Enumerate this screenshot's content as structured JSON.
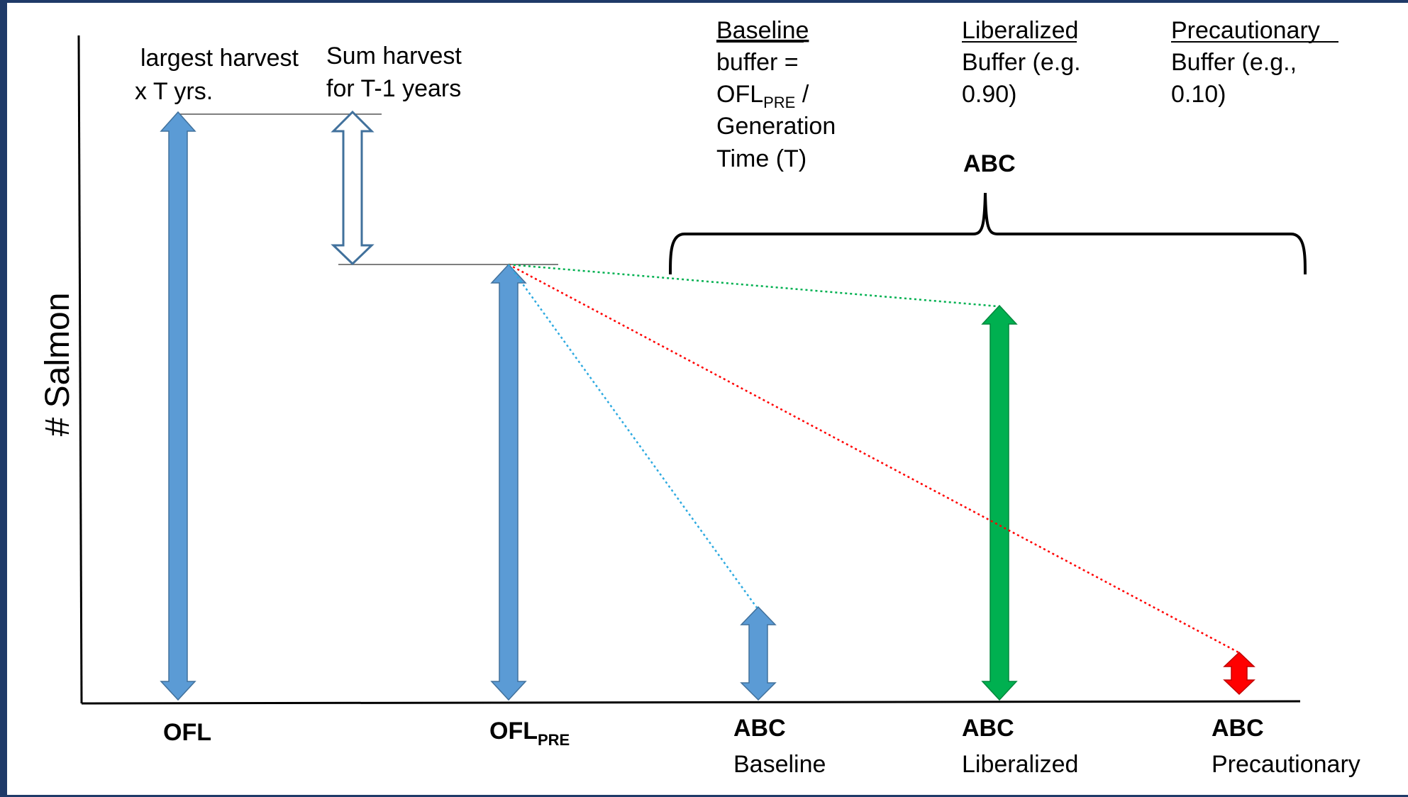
{
  "y_axis_label": "# Salmon",
  "top_notes": {
    "largest_harvest": [
      "largest harvest",
      "x T yrs."
    ],
    "sum_harvest": [
      "Sum harvest",
      "for T-1 years"
    ],
    "baseline": {
      "heading": "Baseline",
      "lines": [
        "buffer =",
        "Generation",
        "Time (T)"
      ],
      "ofl_line": {
        "main": "OFL",
        "sub": "PRE",
        "tail": " /"
      }
    },
    "liberalized": {
      "heading": "Liberalized",
      "lines": [
        "Buffer (e.g.",
        "0.90)"
      ]
    },
    "precautionary": {
      "heading": "Precautionary",
      "lines": [
        "Buffer (e.g.,",
        "0.10)"
      ]
    },
    "abc_brace_label": "ABC"
  },
  "bottom_labels": {
    "ofl": "OFL",
    "ofl_pre": {
      "main": "OFL",
      "sub": "PRE"
    },
    "abc_baseline": {
      "main": "ABC",
      "sub": "Baseline"
    },
    "abc_liberalized": {
      "main": "ABC",
      "sub": "Liberalized"
    },
    "abc_precautionary": {
      "main": "ABC",
      "sub": "Precautionary"
    }
  },
  "colors": {
    "blue_arrow": "#5b9bd5",
    "blue_outline": "#41719c",
    "green_arrow": "#00b050",
    "red_arrow": "#ff0000",
    "green_dotted": "#00b050",
    "red_dotted": "#ff0000",
    "cyan_dotted": "#2eaae0"
  }
}
